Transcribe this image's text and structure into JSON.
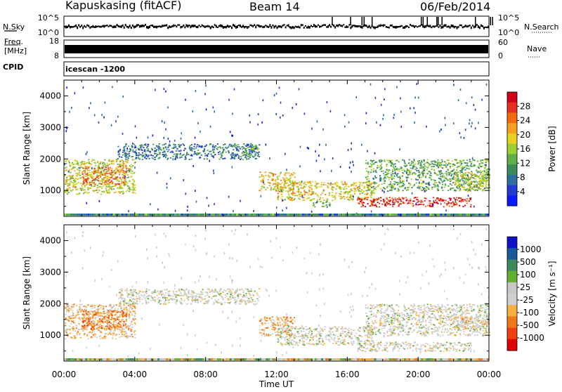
{
  "header": {
    "station": "Kapuskasing (fitACF)",
    "beam": "Beam 14",
    "date": "06/Feb/2014"
  },
  "top_panels": {
    "nsky_label": "N.Sky",
    "nsearch_label": "N.Search",
    "noise_ticks_left": [
      "10^5",
      "10^0"
    ],
    "noise_ticks_right": [
      "10^5",
      "10^0"
    ],
    "freq_label": "Freq.",
    "freq_unit": "[MHz]",
    "freq_ticks": [
      "18",
      "8"
    ],
    "nave_label": "Nave",
    "nave_ticks": [
      "60",
      "0"
    ],
    "cpid_label": "CPID",
    "cpid_value": "icescan -1200"
  },
  "colors": {
    "power_scale": [
      "#0a1aff",
      "#1f3bd0",
      "#2c6e9c",
      "#3a8a5a",
      "#5fae4a",
      "#9ad030",
      "#e8d020",
      "#f5a020",
      "#f06a10",
      "#e83020",
      "#d00018"
    ],
    "velocity_scale": [
      "#e00000",
      "#f04010",
      "#f07818",
      "#f8b040",
      "#d0d0d0",
      "#c8c8c8",
      "#60b030",
      "#3a8a5a",
      "#1a5a9a",
      "#1010c8"
    ]
  },
  "chart_data": [
    {
      "type": "heatmap",
      "name": "Power",
      "ylabel": "Slant Range [km]",
      "yticks": [
        "4000",
        "3000",
        "2000",
        "1000"
      ],
      "ylim": [
        180,
        4500
      ],
      "colorbar_label": "Power [dB]",
      "colorbar_ticks": [
        "28",
        "24",
        "20",
        "16",
        "12",
        "8",
        "4"
      ],
      "colorbar_range": [
        0,
        30
      ],
      "regions": [
        {
          "t": [
            0.0,
            4.0
          ],
          "r": [
            900,
            2000
          ],
          "v": 16
        },
        {
          "t": [
            1.0,
            3.5
          ],
          "r": [
            1200,
            1800
          ],
          "v": 22
        },
        {
          "t": [
            3.0,
            11.0
          ],
          "r": [
            2000,
            2500
          ],
          "v": 8
        },
        {
          "t": [
            10.0,
            11.0
          ],
          "r": [
            2100,
            2400
          ],
          "v": 12
        },
        {
          "t": [
            11.0,
            13.0
          ],
          "r": [
            1000,
            1600
          ],
          "v": 18
        },
        {
          "t": [
            12.0,
            17.5
          ],
          "r": [
            700,
            1300
          ],
          "v": 18
        },
        {
          "t": [
            14.0,
            15.0
          ],
          "r": [
            500,
            700
          ],
          "v": 12
        },
        {
          "t": [
            16.5,
            23.0
          ],
          "r": [
            500,
            800
          ],
          "v": 27
        },
        {
          "t": [
            17.0,
            24.0
          ],
          "r": [
            1000,
            2000
          ],
          "v": 12
        },
        {
          "t": [
            22.0,
            24.0
          ],
          "r": [
            1000,
            1600
          ],
          "v": 16
        }
      ]
    },
    {
      "type": "heatmap",
      "name": "Velocity",
      "ylabel": "Slant Range [km]",
      "yticks": [
        "4000",
        "3000",
        "2000",
        "1000"
      ],
      "ylim": [
        180,
        4500
      ],
      "xlabel": "Time UT",
      "xticks": [
        "00:00",
        "04:00",
        "08:00",
        "12:00",
        "16:00",
        "20:00",
        "00:00"
      ],
      "xlim": [
        0,
        24
      ],
      "colorbar_label": "Velocity [m s⁻¹]",
      "colorbar_ticks": [
        "1000",
        "500",
        "100",
        "25",
        "-25",
        "-100",
        "-500",
        "-1000"
      ],
      "colorbar_range": [
        -1200,
        1200
      ],
      "regions": [
        {
          "t": [
            0.0,
            4.0
          ],
          "r": [
            900,
            2000
          ],
          "v": -300
        },
        {
          "t": [
            1.0,
            3.5
          ],
          "r": [
            1200,
            1800
          ],
          "v": -600
        },
        {
          "t": [
            3.0,
            11.0
          ],
          "r": [
            2000,
            2500
          ],
          "v": 0
        },
        {
          "t": [
            11.0,
            13.0
          ],
          "r": [
            1000,
            1600
          ],
          "v": -400
        },
        {
          "t": [
            12.0,
            17.5
          ],
          "r": [
            700,
            1300
          ],
          "v": 0
        },
        {
          "t": [
            16.5,
            23.0
          ],
          "r": [
            500,
            800
          ],
          "v": 0
        },
        {
          "t": [
            17.0,
            24.0
          ],
          "r": [
            1000,
            2000
          ],
          "v": 0
        },
        {
          "t": [
            22.0,
            24.0
          ],
          "r": [
            1200,
            1600
          ],
          "v": -200
        }
      ]
    }
  ]
}
